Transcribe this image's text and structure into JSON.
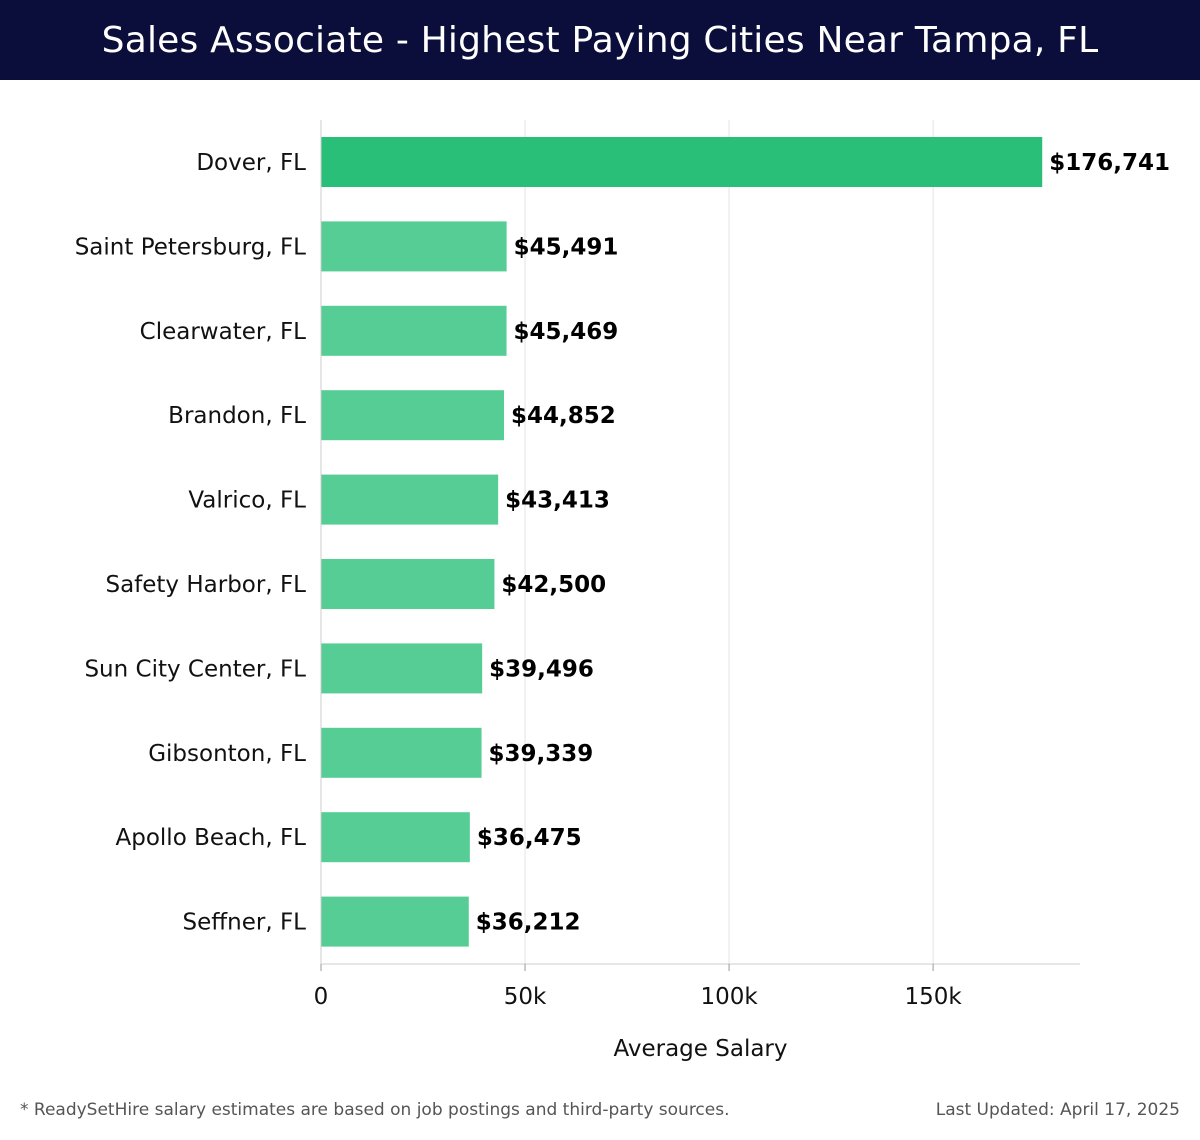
{
  "header": {
    "title": "Sales Associate - Highest Paying Cities Near Tampa, FL"
  },
  "chart_data": {
    "type": "bar",
    "orientation": "horizontal",
    "title": "Sales Associate - Highest Paying Cities Near Tampa, FL",
    "xlabel": "Average Salary",
    "ylabel": "",
    "xlim": [
      0,
      186000
    ],
    "xticks": [
      0,
      50000,
      100000,
      150000
    ],
    "xtick_labels": [
      "0",
      "50k",
      "100k",
      "150k"
    ],
    "grid": true,
    "categories": [
      "Dover, FL",
      "Saint Petersburg, FL",
      "Clearwater, FL",
      "Brandon, FL",
      "Valrico, FL",
      "Safety Harbor, FL",
      "Sun City Center, FL",
      "Gibsonton, FL",
      "Apollo Beach, FL",
      "Seffner, FL"
    ],
    "values": [
      176741,
      45491,
      45469,
      44852,
      43413,
      42500,
      39496,
      39339,
      36475,
      36212
    ],
    "value_labels": [
      "$176,741",
      "$45,491",
      "$45,469",
      "$44,852",
      "$43,413",
      "$42,500",
      "$39,496",
      "$39,339",
      "$36,475",
      "$36,212"
    ],
    "colors": {
      "highlight": "#2abf79",
      "bar": "#55cd95",
      "grid": "#e3e3e3",
      "axis": "#cccccc"
    }
  },
  "footer": {
    "note": "* ReadySetHire salary estimates are based on job postings and third-party sources.",
    "updated": "Last Updated: April 17, 2025"
  }
}
